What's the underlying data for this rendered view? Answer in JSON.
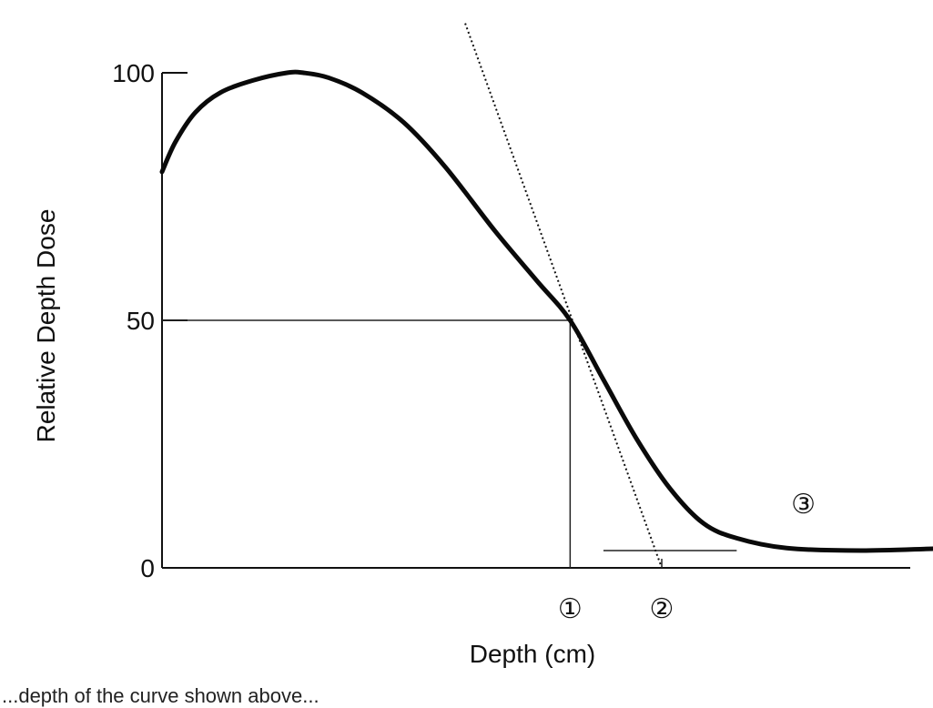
{
  "chart_data": {
    "type": "line",
    "title": "",
    "xlabel": "Depth (cm)",
    "ylabel": "Relative Depth Dose",
    "ylim": [
      0,
      100
    ],
    "yticks": [
      "100",
      "50",
      "0"
    ],
    "grid": false,
    "series": [
      {
        "values": [
          [
            0.0,
            80
          ],
          [
            0.08,
            86
          ],
          [
            0.2,
            92
          ],
          [
            0.35,
            96
          ],
          [
            0.55,
            98.5
          ],
          [
            0.75,
            100
          ],
          [
            0.85,
            100
          ],
          [
            1.0,
            99
          ],
          [
            1.2,
            96
          ],
          [
            1.45,
            90
          ],
          [
            1.7,
            81
          ],
          [
            2.0,
            68
          ],
          [
            2.25,
            58
          ],
          [
            2.45,
            50
          ],
          [
            2.65,
            38
          ],
          [
            2.85,
            26
          ],
          [
            3.05,
            16
          ],
          [
            3.25,
            9
          ],
          [
            3.45,
            6
          ],
          [
            3.75,
            4
          ],
          [
            4.2,
            3.5
          ],
          [
            4.8,
            4
          ],
          [
            5.4,
            4
          ]
        ]
      }
    ],
    "tangent_line": [
      [
        1.82,
        110
      ],
      [
        3.0,
        0
      ]
    ],
    "r50_marker": {
      "x": 2.45,
      "y": 50
    },
    "bremsstrahlung_level": {
      "y": 3.5,
      "x_from": 2.65,
      "x_to": 3.45
    },
    "annotations": [
      {
        "label": "①",
        "x": 2.45
      },
      {
        "label": "②",
        "x": 3.0
      },
      {
        "label": "③",
        "x": 3.85,
        "y": 11
      }
    ]
  },
  "footer": {
    "caption": "...depth of the curve shown above..."
  }
}
